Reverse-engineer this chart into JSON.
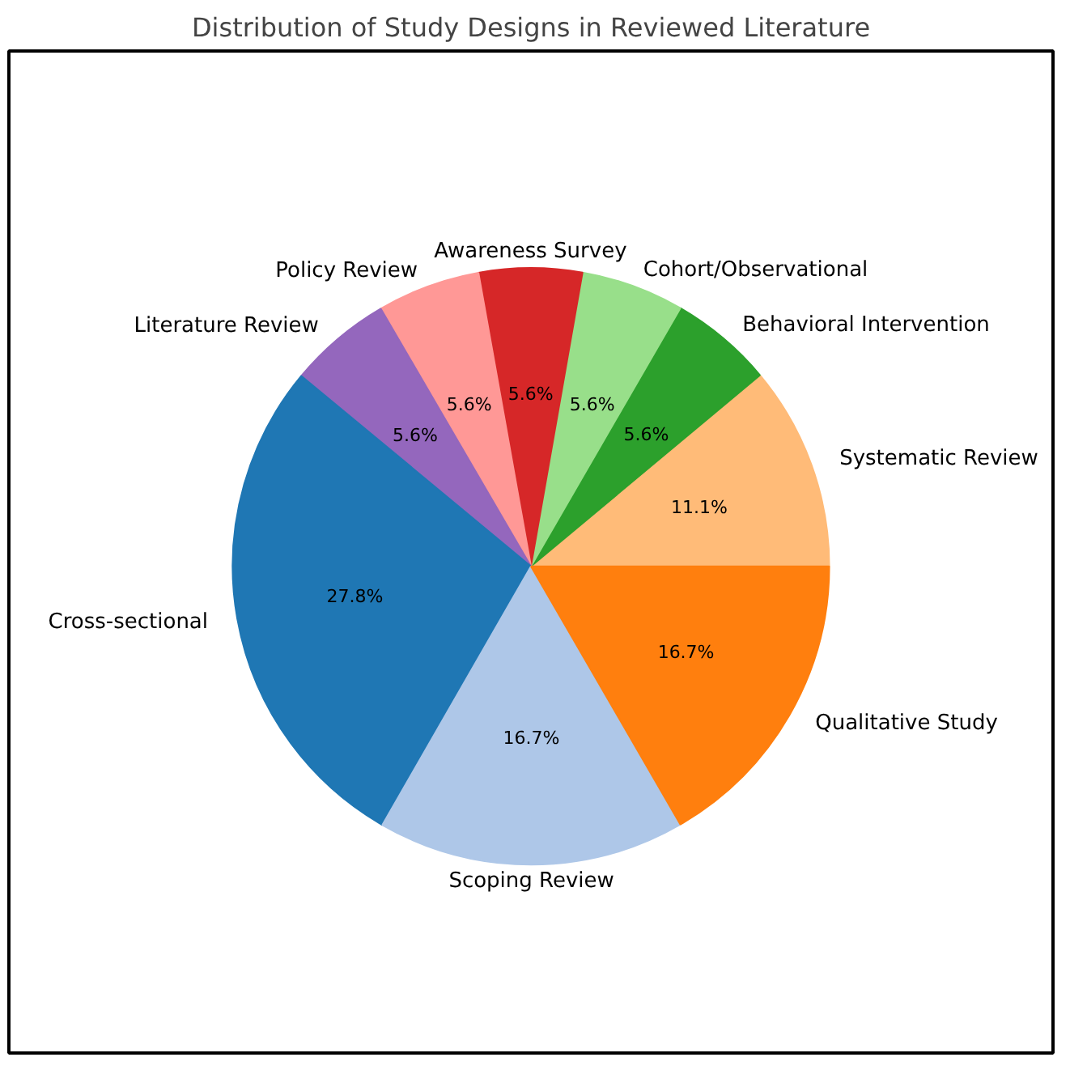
{
  "chart_data": {
    "type": "pie",
    "title": "Distribution of Study Designs in Reviewed Literature",
    "categories": [
      "Systematic Review",
      "Behavioral Intervention",
      "Cohort/Observational",
      "Awareness Survey",
      "Policy Review",
      "Literature Review",
      "Cross-sectional",
      "Scoping Review",
      "Qualitative Study"
    ],
    "values": [
      11.1,
      5.6,
      5.6,
      5.6,
      5.6,
      5.6,
      27.8,
      16.7,
      16.7
    ],
    "colors": [
      "#ffbb78",
      "#2ca02c",
      "#98df8a",
      "#d62728",
      "#ff9896",
      "#9467bd",
      "#1f77b4",
      "#aec7e8",
      "#ff7f0e"
    ],
    "value_labels": [
      "11.1%",
      "5.6%",
      "5.6%",
      "5.6%",
      "5.6%",
      "5.6%",
      "27.8%",
      "16.7%",
      "16.7%"
    ]
  }
}
